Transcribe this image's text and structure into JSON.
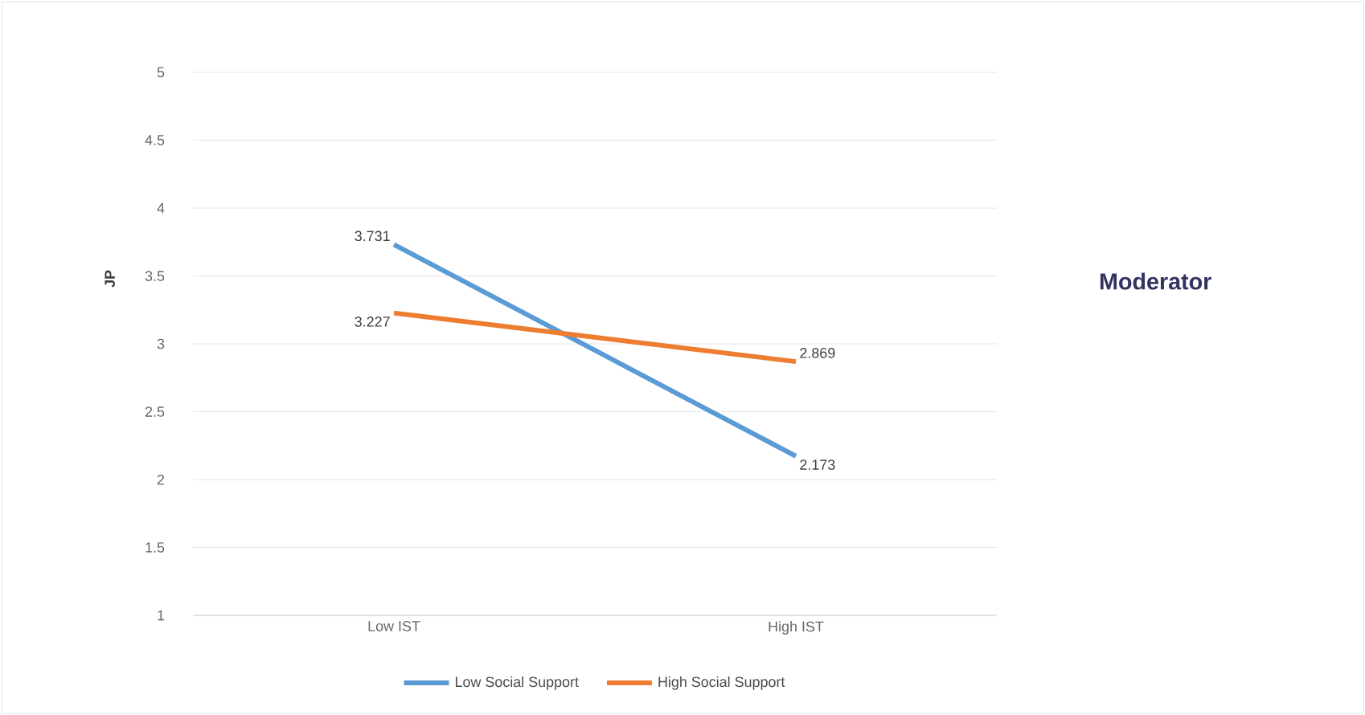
{
  "chart_data": {
    "type": "line",
    "ylabel": "JP",
    "categories": [
      "Low IST",
      "High IST"
    ],
    "series": [
      {
        "name": "Low Social Support",
        "color": "#5b9bd5",
        "values": [
          3.731,
          2.173
        ]
      },
      {
        "name": "High Social Support",
        "color": "#ed7d31",
        "values": [
          3.227,
          2.869
        ]
      }
    ],
    "ylim": [
      1,
      5
    ],
    "yticks": [
      1,
      1.5,
      2,
      2.5,
      3,
      3.5,
      4,
      4.5,
      5
    ],
    "grid": "y",
    "legend": "bottom",
    "data_labels": true,
    "marker": "none",
    "line_style": "solid",
    "annotations": [
      "Moderator"
    ]
  }
}
